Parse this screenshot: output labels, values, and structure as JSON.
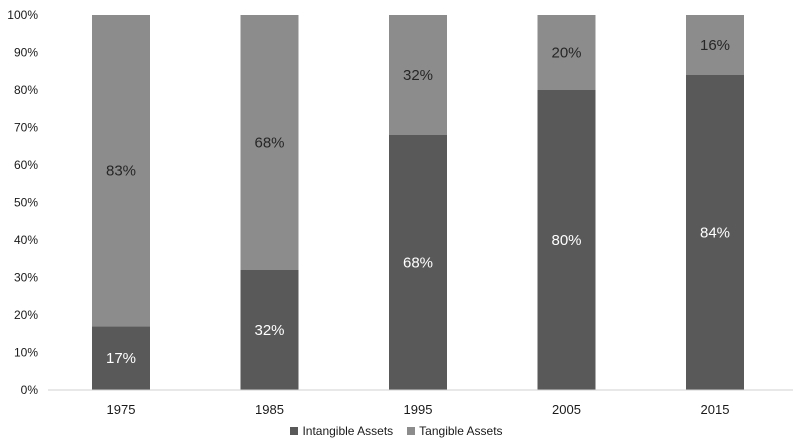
{
  "chart_data": {
    "type": "bar",
    "stacked": true,
    "categories": [
      "1975",
      "1985",
      "1995",
      "2005",
      "2015"
    ],
    "series": [
      {
        "name": "Intangible Assets",
        "values": [
          17,
          32,
          68,
          80,
          84
        ],
        "labels": [
          "17%",
          "32%",
          "68%",
          "80%",
          "84%"
        ],
        "color": "#595959"
      },
      {
        "name": "Tangible Assets",
        "values": [
          83,
          68,
          32,
          20,
          16
        ],
        "labels": [
          "83%",
          "68%",
          "32%",
          "20%",
          "16%"
        ],
        "color": "#8c8c8c"
      }
    ],
    "title": "",
    "xlabel": "",
    "ylabel": "",
    "ylim": [
      0,
      100
    ],
    "yticks": [
      "0%",
      "10%",
      "20%",
      "30%",
      "40%",
      "50%",
      "60%",
      "70%",
      "80%",
      "90%",
      "100%"
    ],
    "grid": false,
    "legend": "bottom-center",
    "label_colors": {
      "Intangible Assets": "#ffffff",
      "Tangible Assets": "#262626"
    }
  }
}
